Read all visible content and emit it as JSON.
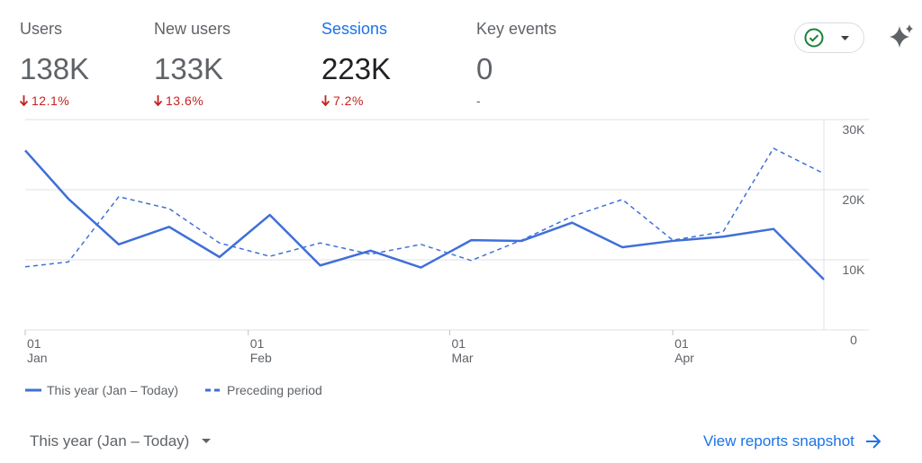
{
  "metrics": [
    {
      "label": "Users",
      "value": "138K",
      "change": "12.1%"
    },
    {
      "label": "New users",
      "value": "133K",
      "change": "13.6%"
    },
    {
      "label": "Sessions",
      "value": "223K",
      "change": "7.2%"
    },
    {
      "label": "Key events",
      "value": "0",
      "change": "-"
    }
  ],
  "chart_data": {
    "type": "line",
    "x": [
      0,
      6,
      13,
      20,
      27,
      34,
      41,
      48,
      55,
      62,
      69,
      76,
      83,
      90,
      97,
      104,
      111
    ],
    "xlim": [
      0,
      111
    ],
    "xticks": [
      {
        "value": 0,
        "label": "01 Jan"
      },
      {
        "value": 31,
        "label": "01 Feb"
      },
      {
        "value": 59,
        "label": "01 Mar"
      },
      {
        "value": 90,
        "label": "01 Apr"
      }
    ],
    "ylim": [
      0,
      30000
    ],
    "yticks": [
      {
        "value": 0,
        "label": "0"
      },
      {
        "value": 10000,
        "label": "10K"
      },
      {
        "value": 20000,
        "label": "20K"
      },
      {
        "value": 30000,
        "label": "30K"
      }
    ],
    "grid": true,
    "series": [
      {
        "name": "This year (Jan – Today)",
        "color": "#3f6fd8",
        "dash": false,
        "values": [
          25600,
          18700,
          12200,
          14700,
          10400,
          16400,
          9200,
          11300,
          8900,
          12800,
          12700,
          15300,
          11800,
          12700,
          13300,
          14400,
          7200
        ]
      },
      {
        "name": "Preceding period",
        "color": "#3f6fd8",
        "dash": true,
        "values": [
          9000,
          9700,
          19000,
          17300,
          12400,
          10500,
          12400,
          10800,
          12200,
          9900,
          12800,
          16200,
          18600,
          12800,
          14000,
          25900,
          22300
        ]
      }
    ]
  },
  "footer": {
    "period": "This year (Jan – Today)",
    "link": "View reports snapshot"
  }
}
